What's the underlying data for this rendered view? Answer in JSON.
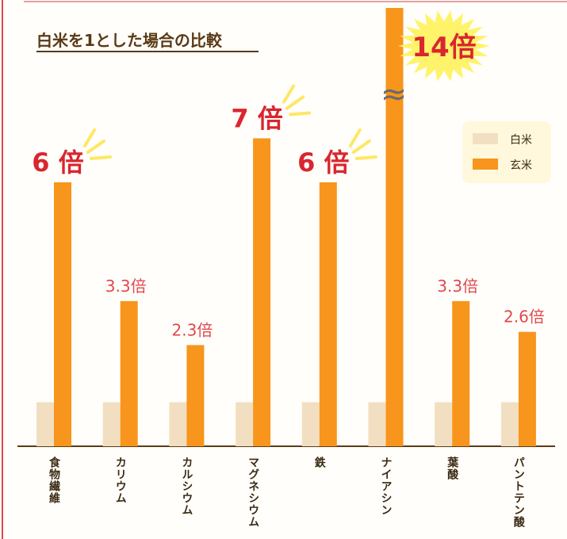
{
  "chart_data": {
    "type": "bar",
    "title": "白米を1とした場合の比較",
    "categories": [
      "食物繊維",
      "カリウム",
      "カルシウム",
      "マグネシウム",
      "鉄",
      "ナイアシン",
      "葉酸",
      "パントテン酸"
    ],
    "series": [
      {
        "name": "白米",
        "values": [
          1,
          1,
          1,
          1,
          1,
          1,
          1,
          1
        ],
        "color": "#f2dfc1"
      },
      {
        "name": "玄米",
        "values": [
          6,
          3.3,
          2.3,
          7,
          6,
          14,
          3.3,
          2.6
        ],
        "color": "#f7951c"
      }
    ],
    "value_labels": [
      "6 倍",
      "3.3倍",
      "2.3倍",
      "7 倍",
      "6 倍",
      "14倍",
      "3.3倍",
      "2.6倍"
    ],
    "axis_break": {
      "category": "ナイアシン",
      "symbol": "≈"
    },
    "legend_position": "right",
    "grid": false
  },
  "colors": {
    "background": "#fffefa",
    "accent_red": "#d9262f",
    "label_red": "#e0494f",
    "burst_yellow": "#fff36b",
    "legend_bg": "#fff8dc",
    "frame_line": "#d94a4a"
  }
}
